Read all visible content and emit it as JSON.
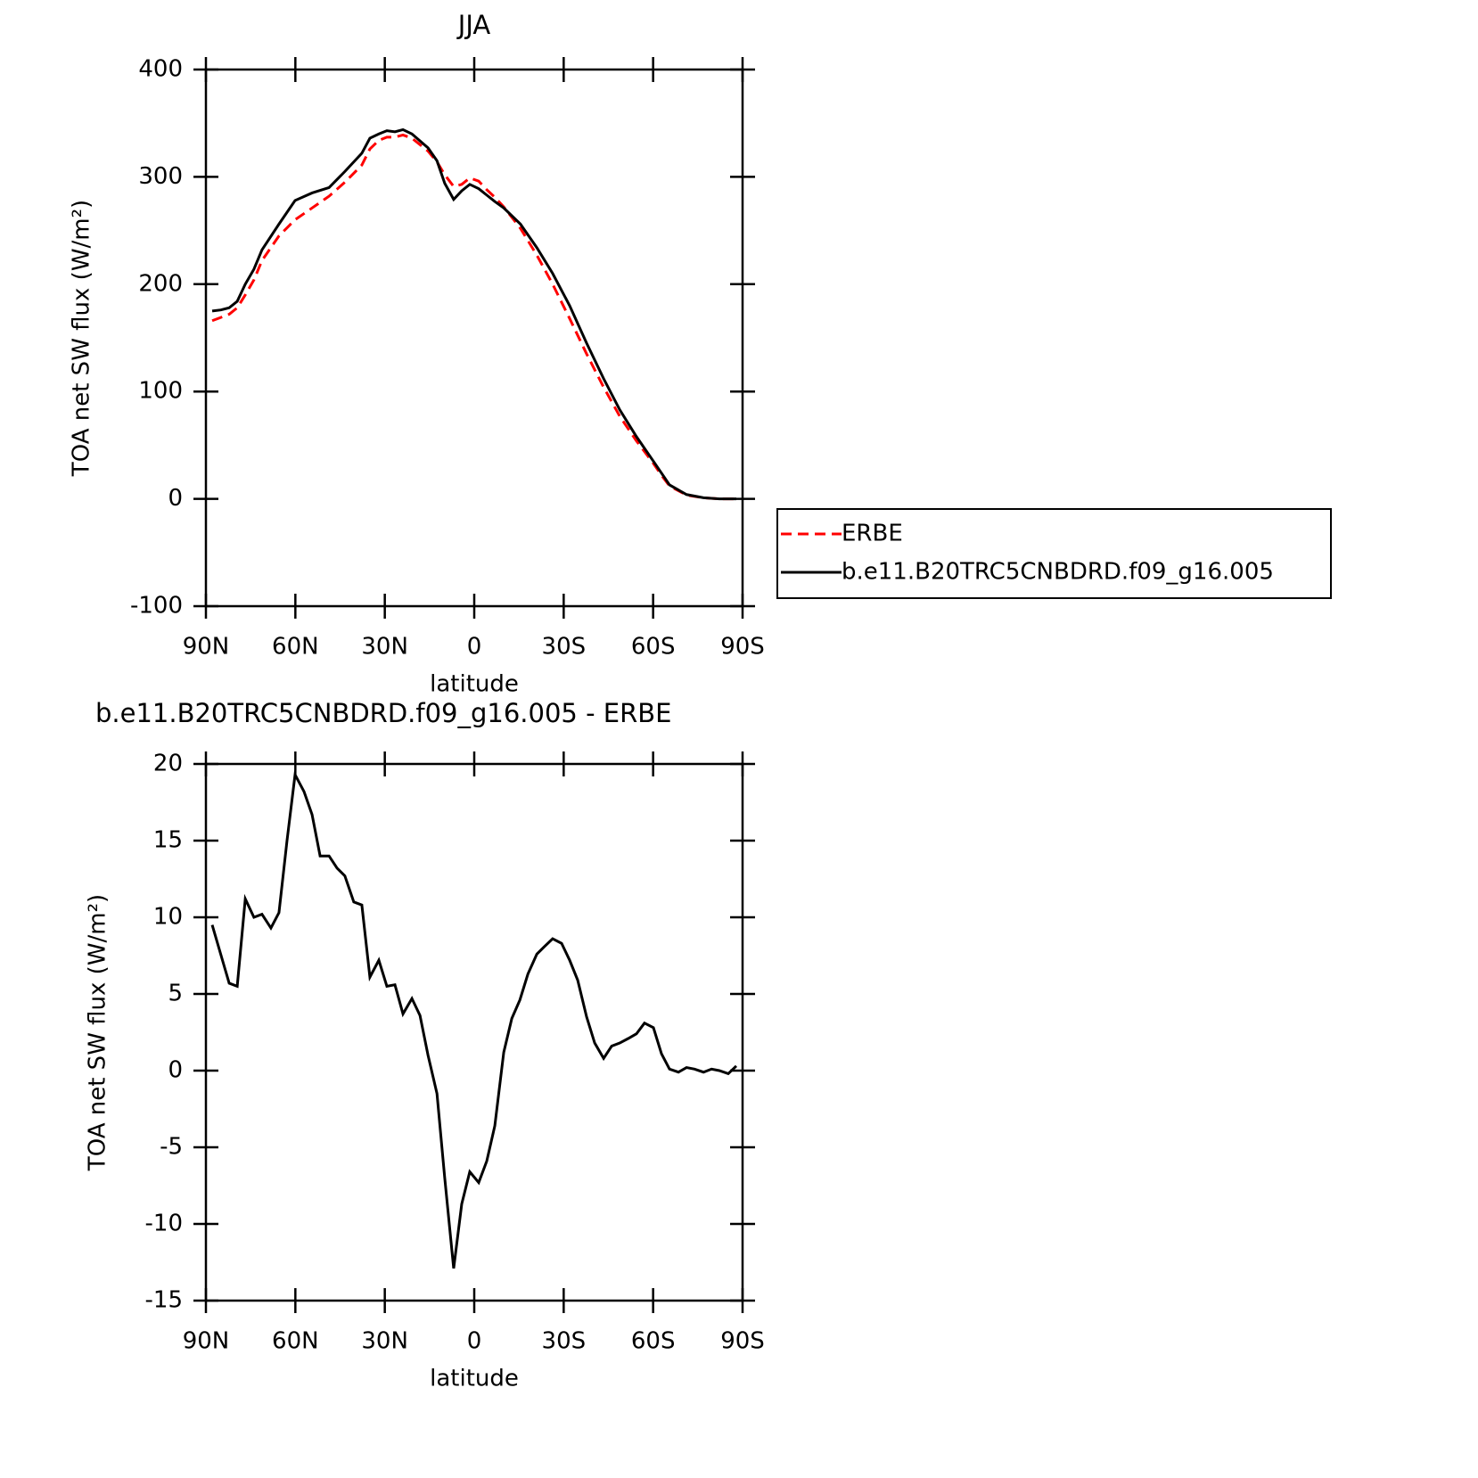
{
  "chart_data": [
    {
      "type": "line",
      "title": "JJA",
      "xlabel": "latitude",
      "ylabel": "TOA net SW flux (W/m²)",
      "x": [
        87.9,
        85,
        82.2,
        79.5,
        76.8,
        73.9,
        71.2,
        65.5,
        60.1,
        54.4,
        48.7,
        43.4,
        37.7,
        35,
        32,
        29.3,
        26.6,
        23.9,
        20.9,
        15.5,
        12.5,
        9.9,
        6.9,
        4.2,
        1.5,
        -1.5,
        -4.2,
        -6.9,
        -9.9,
        -15.5,
        -21,
        -26.3,
        -32,
        -37.7,
        -43.4,
        -48.8,
        -54.4,
        -60.1,
        -62.8,
        -65.5,
        -71.2,
        -76.9,
        -82.2,
        -87.9
      ],
      "series": [
        {
          "name": "ERBE",
          "color": "#ff0000",
          "style": "dashed",
          "values": [
            166,
            169,
            172,
            178,
            190,
            204,
            222,
            245,
            260,
            271,
            282,
            295,
            311,
            326,
            334,
            337,
            337,
            339,
            336,
            324,
            314,
            302,
            291,
            293,
            299,
            296,
            288,
            281,
            272,
            252,
            227,
            200,
            168,
            135,
            104,
            77,
            54,
            33,
            22,
            12,
            3.5,
            1,
            0,
            0
          ]
        },
        {
          "name": "b.e11.B20TRC5CNBDRD.f09_g16.005",
          "color": "#000000",
          "style": "solid",
          "values": [
            175,
            176,
            178,
            184,
            200,
            214,
            232,
            256,
            278,
            285,
            290,
            305,
            322,
            336,
            340,
            343,
            342,
            344,
            340,
            327,
            315,
            294,
            279,
            287,
            293,
            289,
            283,
            277,
            271,
            256,
            234,
            210,
            180,
            145,
            112,
            83,
            58,
            35,
            24,
            13,
            4,
            1,
            0,
            0
          ]
        }
      ],
      "xlim": [
        90,
        -90
      ],
      "xticks": [
        {
          "value": 90,
          "label": "90N"
        },
        {
          "value": 60,
          "label": "60N"
        },
        {
          "value": 30,
          "label": "30N"
        },
        0,
        {
          "value": -30,
          "label": "30S"
        },
        {
          "value": -60,
          "label": "60S"
        },
        {
          "value": -90,
          "label": "90S"
        }
      ],
      "ylim": [
        -100,
        400
      ],
      "yticks": [
        -100,
        0,
        100,
        200,
        300,
        400
      ],
      "legend": "right"
    },
    {
      "type": "line",
      "title": "b.e11.B20TRC5CNBDRD.f09_g16.005 - ERBE",
      "xlabel": "latitude",
      "ylabel": "TOA net SW flux (W/m²)",
      "x": [
        87.9,
        82.2,
        79.5,
        76.8,
        73.9,
        71.2,
        68.2,
        65.5,
        62.8,
        60.1,
        57.1,
        54.4,
        51.7,
        48.7,
        46.0,
        43.4,
        40.4,
        37.7,
        35.0,
        32.0,
        29.3,
        26.6,
        23.9,
        20.9,
        18.2,
        15.5,
        12.5,
        9.9,
        6.9,
        4.2,
        1.5,
        -1.5,
        -4.2,
        -6.9,
        -9.9,
        -12.6,
        -15.3,
        -18.0,
        -21.0,
        -23.6,
        -26.3,
        -29.3,
        -32.0,
        -34.7,
        -37.7,
        -40.4,
        -43.4,
        -46.1,
        -48.8,
        -51.7,
        -54.4,
        -57.1,
        -60.1,
        -62.8,
        -65.5,
        -68.5,
        -71.2,
        -73.9,
        -76.9,
        -79.6,
        -82.2,
        -85.2,
        -87.9
      ],
      "series": [
        {
          "color": "#000000",
          "style": "solid",
          "values": [
            9.5,
            5.7,
            5.5,
            11.2,
            10.0,
            10.2,
            9.3,
            10.3,
            15.0,
            19.3,
            18.2,
            16.7,
            14.0,
            14.0,
            13.2,
            12.7,
            11.0,
            10.8,
            6.1,
            7.2,
            5.5,
            5.6,
            3.7,
            4.7,
            3.6,
            1.0,
            -1.5,
            -7.0,
            -12.9,
            -8.7,
            -6.6,
            -7.3,
            -5.9,
            -3.6,
            1.2,
            3.4,
            4.6,
            6.3,
            7.6,
            8.1,
            8.6,
            8.3,
            7.2,
            5.9,
            3.5,
            1.8,
            0.8,
            1.6,
            1.8,
            2.1,
            2.4,
            3.1,
            2.8,
            1.1,
            0.1,
            -0.1,
            0.2,
            0.1,
            -0.1,
            0.1,
            0.0,
            -0.2,
            0.3
          ]
        }
      ],
      "xlim": [
        90,
        -90
      ],
      "xticks": [
        {
          "value": 90,
          "label": "90N"
        },
        {
          "value": 60,
          "label": "60N"
        },
        {
          "value": 30,
          "label": "30N"
        },
        0,
        {
          "value": -30,
          "label": "30S"
        },
        {
          "value": -60,
          "label": "60S"
        },
        {
          "value": -90,
          "label": "90S"
        }
      ],
      "ylim": [
        -15,
        20
      ],
      "yticks": [
        -15,
        -10,
        -5,
        0,
        5,
        10,
        15,
        20
      ]
    }
  ]
}
